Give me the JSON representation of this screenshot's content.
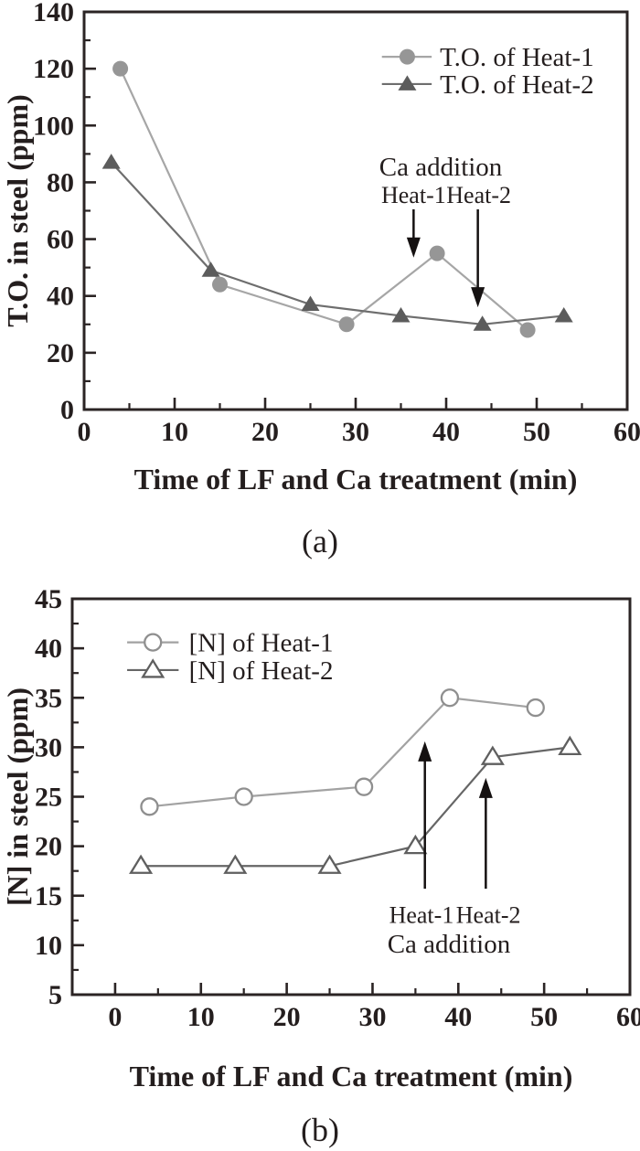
{
  "figure": {
    "background": "#ffffff",
    "axis_color": "#2b2424",
    "text_color": "#241e1e",
    "arrow_color": "#151111"
  },
  "chart_data": [
    {
      "id": "a",
      "type": "line",
      "caption": "(a)",
      "xlabel": "Time of LF and Ca treatment (min)",
      "ylabel": "T.O. in steel (ppm)",
      "xlim": [
        0,
        60
      ],
      "ylim": [
        0,
        140
      ],
      "x_major_ticks": [
        0,
        10,
        20,
        30,
        40,
        50,
        60
      ],
      "x_minor_step": 5,
      "y_major_ticks": [
        0,
        20,
        40,
        60,
        80,
        100,
        120,
        140
      ],
      "y_minor_step": 10,
      "grid": false,
      "legend_position": "top-right-inside",
      "series": [
        {
          "name": "T.O. of Heat-1",
          "marker": "circle",
          "marker_fill": "solid",
          "marker_color": "#969696",
          "line_color": "#a6a6a6",
          "x": [
            4,
            15,
            29,
            39,
            49
          ],
          "y": [
            120,
            44,
            30,
            55,
            28
          ]
        },
        {
          "name": "T.O. of Heat-2",
          "marker": "triangle",
          "marker_fill": "solid",
          "marker_color": "#5c5c5c",
          "line_color": "#6e6e6e",
          "x": [
            3,
            14,
            25,
            35,
            44,
            53
          ],
          "y": [
            87,
            49,
            37,
            33,
            30,
            33
          ]
        }
      ],
      "legend": {
        "sample_x": [
          32.9,
          38.4
        ],
        "marker_x": 35.7,
        "text_x": 39.3,
        "items": [
          {
            "series": 0,
            "label": "T.O. of Heat-1",
            "y": 124.2
          },
          {
            "series": 1,
            "label": "T.O. of Heat-2",
            "y": 114.6
          }
        ]
      },
      "annotations": {
        "texts": [
          {
            "text": "Ca addition",
            "x": 39.4,
            "y": 85.6,
            "size": 29
          },
          {
            "text": "Heat-1",
            "x": 36.4,
            "y": 75.6,
            "size": 26
          },
          {
            "text": "Heat-2",
            "x": 43.6,
            "y": 75.6,
            "size": 26
          }
        ],
        "arrows": [
          {
            "x": 36.4,
            "from": 70.5,
            "to": 53.5
          },
          {
            "x": 43.5,
            "from": 70.5,
            "to": 36.0
          }
        ]
      }
    },
    {
      "id": "b",
      "type": "line",
      "caption": "(b)",
      "xlabel": "Time of LF and Ca treatment (min)",
      "ylabel": "[N]  in steel (ppm)",
      "xlim": [
        -5,
        60
      ],
      "ylim": [
        5,
        45
      ],
      "x_major_ticks": [
        0,
        10,
        20,
        30,
        40,
        50,
        60
      ],
      "x_minor_step": 5,
      "y_major_ticks": [
        5,
        10,
        15,
        20,
        25,
        30,
        35,
        40,
        45
      ],
      "y_minor_step": 2.5,
      "grid": false,
      "legend_position": "top-left-inside",
      "series": [
        {
          "name": "[N] of Heat-1",
          "marker": "circle",
          "marker_fill": "open",
          "marker_color": "#8f8f8f",
          "line_color": "#a2a2a2",
          "x": [
            4,
            15,
            29,
            39,
            49
          ],
          "y": [
            24,
            25,
            26,
            35,
            34
          ]
        },
        {
          "name": "[N] of Heat-2",
          "marker": "triangle",
          "marker_fill": "open",
          "marker_color": "#5f5f5f",
          "line_color": "#666666",
          "x": [
            3,
            14,
            25,
            35,
            44,
            53
          ],
          "y": [
            18,
            18,
            18,
            20,
            29,
            30
          ]
        }
      ],
      "legend": {
        "sample_x": [
          1.4,
          7.4
        ],
        "marker_x": 4.4,
        "text_x": 8.6,
        "items": [
          {
            "series": 0,
            "label": "[N] of Heat-1",
            "y": 40.6
          },
          {
            "series": 1,
            "label": "[N] of Heat-2",
            "y": 37.8
          }
        ]
      },
      "annotations": {
        "texts": [
          {
            "text": "Heat-1",
            "x": 35.7,
            "y": 13.1,
            "size": 26
          },
          {
            "text": "Heat-2",
            "x": 43.5,
            "y": 13.1,
            "size": 26
          },
          {
            "text": "Ca addition",
            "x": 38.9,
            "y": 10.2,
            "size": 29
          }
        ],
        "arrows": [
          {
            "x": 36.1,
            "from": 15.7,
            "to": 30.6
          },
          {
            "x": 43.2,
            "from": 15.7,
            "to": 26.9
          }
        ]
      }
    }
  ]
}
